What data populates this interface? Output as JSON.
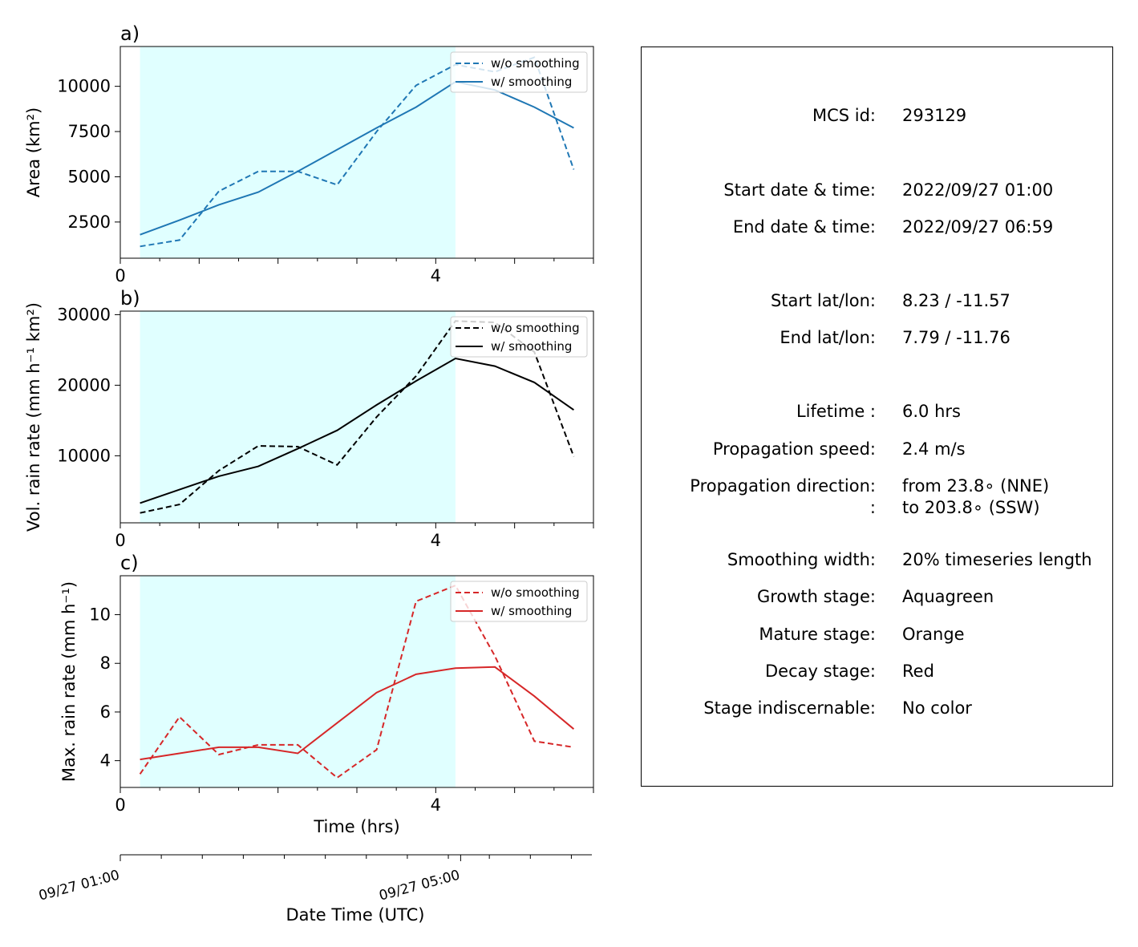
{
  "chart_data": [
    {
      "type": "line",
      "panel_label": "a)",
      "xlabel": "",
      "ylabel": "Area  (km²)",
      "xlim": [
        0,
        6
      ],
      "ylim": [
        500,
        12200
      ],
      "xticks": [
        0,
        4
      ],
      "yticks": [
        2500,
        5000,
        7500,
        10000
      ],
      "x": [
        0.25,
        0.75,
        1.25,
        1.75,
        2.25,
        2.75,
        3.25,
        3.75,
        4.25,
        4.75,
        5.25,
        5.75
      ],
      "series": [
        {
          "name": "w/o smoothing",
          "style": "dashed",
          "color": "#1f77b4",
          "values": [
            1150,
            1500,
            4200,
            5300,
            5300,
            4550,
            7500,
            10050,
            11200,
            10800,
            11600,
            5400
          ]
        },
        {
          "name": "w/ smoothing",
          "style": "solid",
          "color": "#1f77b4",
          "values": [
            1800,
            2600,
            3450,
            4150,
            5300,
            6500,
            7700,
            8850,
            10250,
            9800,
            8850,
            7700
          ]
        }
      ],
      "shaded_span": {
        "x0": 0.25,
        "x1": 4.25,
        "color": "#e0ffff"
      },
      "legend": "top-right",
      "grid": false
    },
    {
      "type": "line",
      "panel_label": "b)",
      "xlabel": "",
      "ylabel": "Vol. rain rate (mm h⁻¹ km²)",
      "xlim": [
        0,
        6
      ],
      "ylim": [
        500,
        30500
      ],
      "xticks": [
        0,
        4
      ],
      "yticks": [
        10000,
        20000,
        30000
      ],
      "x": [
        0.25,
        0.75,
        1.25,
        1.75,
        2.25,
        2.75,
        3.25,
        3.75,
        4.25,
        4.75,
        5.25,
        5.75
      ],
      "series": [
        {
          "name": "w/o smoothing",
          "style": "dashed",
          "color": "#000000",
          "values": [
            1900,
            3100,
            7900,
            11400,
            11300,
            8700,
            15500,
            21300,
            29100,
            28900,
            24700,
            9900
          ]
        },
        {
          "name": "w/ smoothing",
          "style": "solid",
          "color": "#000000",
          "values": [
            3300,
            5200,
            7100,
            8500,
            11000,
            13600,
            17200,
            20600,
            23800,
            22700,
            20400,
            16500
          ]
        }
      ],
      "shaded_span": {
        "x0": 0.25,
        "x1": 4.25,
        "color": "#e0ffff"
      },
      "legend": "top-right",
      "grid": false
    },
    {
      "type": "line",
      "panel_label": "c)",
      "xlabel": "Time (hrs)",
      "ylabel": "Max. rain rate  (mm h⁻¹)",
      "xlim": [
        0,
        6
      ],
      "ylim": [
        2.9,
        11.6
      ],
      "xticks": [
        0,
        4
      ],
      "yticks": [
        4,
        6,
        8,
        10
      ],
      "x": [
        0.25,
        0.75,
        1.25,
        1.75,
        2.25,
        2.75,
        3.25,
        3.75,
        4.25,
        4.75,
        5.25,
        5.75
      ],
      "series": [
        {
          "name": "w/o smoothing",
          "style": "dashed",
          "color": "#d62728",
          "values": [
            3.45,
            5.8,
            4.25,
            4.65,
            4.65,
            3.3,
            4.45,
            10.55,
            11.2,
            8.3,
            4.8,
            4.55
          ]
        },
        {
          "name": "w/ smoothing",
          "style": "solid",
          "color": "#d62728",
          "values": [
            4.05,
            4.3,
            4.55,
            4.55,
            4.3,
            5.55,
            6.8,
            7.55,
            7.8,
            7.85,
            6.65,
            5.3
          ]
        }
      ],
      "shaded_span": {
        "x0": 0.25,
        "x1": 4.25,
        "color": "#e0ffff"
      },
      "legend": "top-right",
      "grid": false
    }
  ],
  "datetime_axis": {
    "xlabel": "Date Time (UTC)",
    "tick_labels": [
      "09/27 01:00",
      "09/27 05:00"
    ],
    "tick_positions_hrs": [
      0,
      4.15
    ]
  },
  "info": [
    {
      "label": "MCS id:",
      "value": "293129"
    },
    {
      "label": "Start date & time:",
      "value": "2022/09/27 01:00"
    },
    {
      "label": "End date & time:",
      "value": "2022/09/27 06:59"
    },
    {
      "label": "Start lat/lon:",
      "value": "8.23 / -11.57"
    },
    {
      "label": "End lat/lon:",
      "value": "7.79 / -11.76"
    },
    {
      "label": "Lifetime :",
      "value": "6.0 hrs"
    },
    {
      "label": "Propagation speed:",
      "value": "2.4 m/s"
    },
    {
      "label": "Propagation direction:",
      "value": "from  23.8∘ (NNE)"
    },
    {
      "label": ":",
      "value": "to   203.8∘ (SSW)"
    },
    {
      "label": "Smoothing width:",
      "value": "20% timeseries length"
    },
    {
      "label": "Growth stage:",
      "value": "Aquagreen"
    },
    {
      "label": "Mature stage:",
      "value": "Orange"
    },
    {
      "label": "Decay stage:",
      "value": "Red"
    },
    {
      "label": "Stage indiscernable:",
      "value": "No color"
    }
  ]
}
